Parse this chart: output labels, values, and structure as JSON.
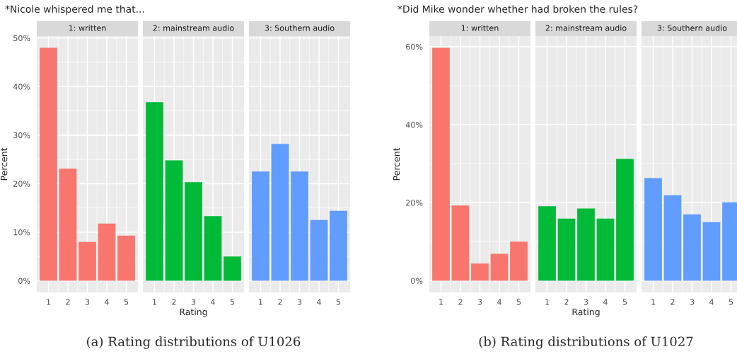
{
  "chart_data": [
    {
      "type": "bar",
      "title": "1: written",
      "subtitle": "*Nicole whispered me that...",
      "ylabel": "Percent",
      "annotations": [
        "(a) Rating distributions of U1026"
      ],
      "categories": [
        "1",
        "2",
        "3",
        "4",
        "5"
      ],
      "values": [
        48.0,
        23.1,
        8.0,
        11.8,
        9.3
      ],
      "color": "#f8766d",
      "ylim": [
        -2.4,
        50.4
      ],
      "yticks": [
        {
          "value": 0,
          "label": "0%"
        },
        {
          "value": 10,
          "label": "10%"
        },
        {
          "value": 20,
          "label": "20%"
        },
        {
          "value": 30,
          "label": "30%"
        },
        {
          "value": 40,
          "label": "40%"
        },
        {
          "value": 50,
          "label": "50%"
        }
      ],
      "grid": true
    },
    {
      "type": "bar",
      "title": "2: mainstream audio",
      "xlabel": "Rating",
      "categories": [
        "1",
        "2",
        "3",
        "4",
        "5"
      ],
      "values": [
        36.8,
        24.8,
        20.3,
        13.3,
        5.0
      ],
      "color": "#00ba38",
      "ylim": [
        -2.4,
        50.4
      ],
      "yticks": [
        0,
        10,
        20,
        30,
        40,
        50
      ],
      "grid": true,
      "tick_labels": "x"
    },
    {
      "type": "bar",
      "title": "3: Southern audio",
      "categories": [
        "1",
        "2",
        "3",
        "4",
        "5"
      ],
      "values": [
        22.5,
        28.2,
        22.5,
        12.5,
        14.4
      ],
      "color": "#619cff",
      "ylim": [
        -2.4,
        50.4
      ],
      "yticks": [
        0,
        10,
        20,
        30,
        40,
        50
      ],
      "grid": true,
      "tick_labels": "x"
    },
    {
      "type": "bar",
      "title": "1: written",
      "subtitle": "*Did Mike wonder whether had broken the rules?",
      "ylabel": "Percent",
      "annotations": [
        "(b) Rating distributions of U1027"
      ],
      "categories": [
        "1",
        "2",
        "3",
        "4",
        "5"
      ],
      "values": [
        59.7,
        19.3,
        4.4,
        6.9,
        10.0
      ],
      "color": "#f8766d",
      "ylim": [
        -3.0,
        62.7
      ],
      "yticks": [
        {
          "value": 0,
          "label": "0%"
        },
        {
          "value": 20,
          "label": "20%"
        },
        {
          "value": 40,
          "label": "40%"
        },
        {
          "value": 60,
          "label": "60%"
        }
      ],
      "grid": true
    },
    {
      "type": "bar",
      "title": "2: mainstream audio",
      "xlabel": "Rating",
      "categories": [
        "1",
        "2",
        "3",
        "4",
        "5"
      ],
      "values": [
        19.1,
        15.9,
        18.5,
        15.9,
        31.2
      ],
      "color": "#00ba38",
      "ylim": [
        -3.0,
        62.7
      ],
      "yticks": [
        0,
        20,
        40,
        60
      ],
      "grid": true,
      "tick_labels": "x"
    },
    {
      "type": "bar",
      "title": "3: Southern audio",
      "categories": [
        "1",
        "2",
        "3",
        "4",
        "5"
      ],
      "values": [
        26.3,
        21.9,
        17.0,
        15.0,
        20.1
      ],
      "color": "#619cff",
      "ylim": [
        -3.0,
        62.7
      ],
      "yticks": [
        0,
        20,
        40,
        60
      ],
      "grid": true,
      "tick_labels": "x"
    }
  ]
}
